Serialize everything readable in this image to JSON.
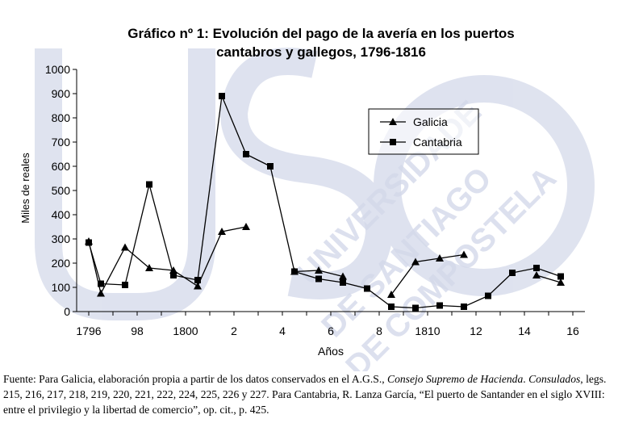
{
  "chart_data": {
    "type": "line",
    "title_line1": "Gráfico nº 1: Evolución del pago de la avería en los puertos",
    "title_line2": "cantabros y gallegos, 1796-1816",
    "xlabel": "Años",
    "ylabel": "Miles de reales",
    "ylim": [
      0,
      1000
    ],
    "yticks": [
      0,
      100,
      200,
      300,
      400,
      500,
      600,
      700,
      800,
      900,
      1000
    ],
    "xlim": [
      1796,
      1816
    ],
    "xtick_years": [
      1796,
      1798,
      1800,
      1802,
      1804,
      1806,
      1808,
      1810,
      1812,
      1814,
      1816
    ],
    "xtick_labels": [
      "1796",
      "98",
      "1800",
      "2",
      "4",
      "6",
      "8",
      "1810",
      "12",
      "14",
      "16"
    ],
    "grid": false,
    "legend_position": "top-right",
    "series": [
      {
        "name": "Galicia",
        "marker": "triangle",
        "points": [
          [
            1796,
            290
          ],
          [
            1796.5,
            75
          ],
          [
            1797.5,
            265
          ],
          [
            1798.5,
            180
          ],
          [
            1799.5,
            170
          ],
          [
            1800.5,
            105
          ],
          [
            1801.5,
            330
          ],
          [
            1802.5,
            350
          ],
          null,
          [
            1804.5,
            165
          ],
          [
            1805.5,
            170
          ],
          [
            1806.5,
            145
          ],
          null,
          [
            1808.5,
            70
          ],
          [
            1809.5,
            205
          ],
          [
            1810.5,
            220
          ],
          [
            1811.5,
            235
          ],
          null,
          [
            1814.5,
            150
          ],
          [
            1815.5,
            120
          ]
        ]
      },
      {
        "name": "Cantabria",
        "marker": "square",
        "points": [
          [
            1796,
            285
          ],
          [
            1796.5,
            115
          ],
          [
            1797.5,
            110
          ],
          [
            1798.5,
            525
          ],
          [
            1799.5,
            150
          ],
          [
            1800.5,
            130
          ],
          [
            1801.5,
            890
          ],
          [
            1802.5,
            650
          ],
          [
            1803.5,
            600
          ],
          [
            1804.5,
            165
          ],
          [
            1805.5,
            135
          ],
          [
            1806.5,
            120
          ],
          [
            1807.5,
            95
          ],
          [
            1808.5,
            20
          ],
          [
            1809.5,
            15
          ],
          [
            1810.5,
            25
          ],
          [
            1811.5,
            20
          ],
          [
            1812.5,
            65
          ],
          [
            1813.5,
            160
          ],
          [
            1814.5,
            180
          ],
          [
            1815.5,
            145
          ]
        ]
      }
    ]
  },
  "caption": {
    "p1": "Fuente: Para Galicia, elaboración propia a partir de los datos conservados en el A.G.S., ",
    "i1": "Consejo Supremo de Hacienda",
    "p2": ". ",
    "i2": "Consulados",
    "p3": ", legs. 215, 216, 217, 218, 219, 220, 221, 222, 224, 225, 226 y 227. Para Cantabria, R. Lanza García, “El puerto de Santander en el siglo XVIII: entre el privilegio y la libertad de comercio”, op. cit., p. 425."
  },
  "colors": {
    "line": "#000000",
    "watermark": "#c9d0e3"
  }
}
